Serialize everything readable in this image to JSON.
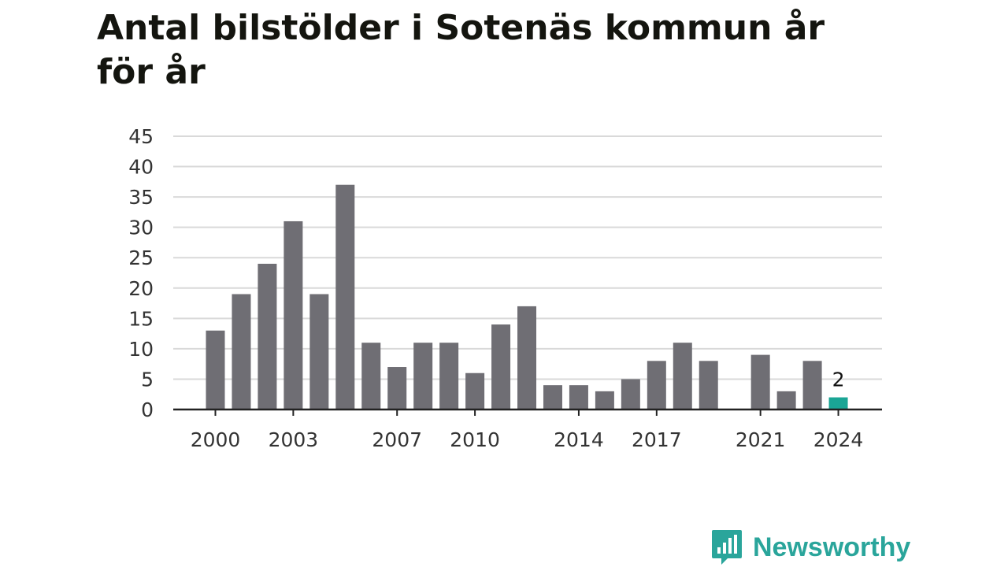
{
  "title": "Antal bilstölder i Sotenäs kommun år för år",
  "brand": {
    "name": "Newsworthy",
    "color": "#2aa59b",
    "icon": "bar-chart-speech-bubble-icon"
  },
  "colors": {
    "bar": "#6f6e74",
    "highlight": "#1aa595",
    "grid": "#d9d9d9",
    "axis": "#222222"
  },
  "chart_data": {
    "type": "bar",
    "title": "Antal bilstölder i Sotenäs kommun år för år",
    "xlabel": "",
    "ylabel": "",
    "categories": [
      2000,
      2001,
      2002,
      2003,
      2004,
      2005,
      2006,
      2007,
      2008,
      2009,
      2010,
      2011,
      2012,
      2013,
      2014,
      2015,
      2016,
      2017,
      2018,
      2019,
      2020,
      2021,
      2022,
      2023,
      2024
    ],
    "values": [
      13,
      19,
      24,
      31,
      19,
      37,
      11,
      7,
      11,
      11,
      6,
      14,
      17,
      4,
      4,
      3,
      5,
      8,
      11,
      8,
      null,
      9,
      3,
      8,
      2
    ],
    "ylim": [
      0,
      45
    ],
    "yticks": [
      0,
      5,
      10,
      15,
      20,
      25,
      30,
      35,
      40,
      45
    ],
    "xticks": [
      2000,
      2003,
      2007,
      2010,
      2014,
      2017,
      2021,
      2024
    ],
    "highlight_category": 2024,
    "highlight_label": "2",
    "grid": true,
    "legend": false
  }
}
